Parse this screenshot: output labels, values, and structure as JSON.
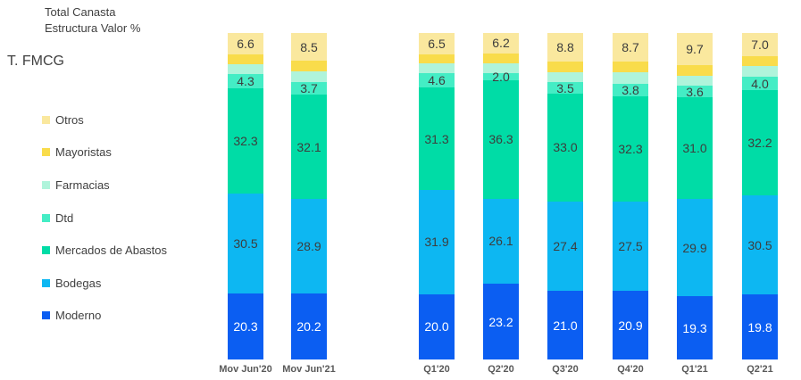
{
  "header": {
    "title_line1": "Total Canasta",
    "title_line2": "Estructura Valor %",
    "segment_label": "T. FMCG"
  },
  "legend": {
    "position": "left",
    "items": [
      {
        "label": "Otros",
        "color": "#FAE89E"
      },
      {
        "label": "Mayoristas",
        "color": "#F9DC4B"
      },
      {
        "label": "Farmacias",
        "color": "#AFF4DB"
      },
      {
        "label": "Dtd",
        "color": "#44EDC5"
      },
      {
        "label": "Mercados de Abastos",
        "color": "#00DCA6"
      },
      {
        "label": "Bodegas",
        "color": "#0DB7F2"
      },
      {
        "label": "Moderno",
        "color": "#0B5EF2"
      }
    ]
  },
  "chart_data": {
    "type": "bar",
    "stacked": true,
    "unit": "%",
    "title": "Total Canasta",
    "subtitle": "Estructura Valor %",
    "grid": false,
    "ylim": [
      0,
      100
    ],
    "legend_position": "left",
    "categories": [
      "Mov Jun'20",
      "Mov Jun'21",
      "Q1'20",
      "Q2'20",
      "Q3'20",
      "Q4'20",
      "Q1'21",
      "Q2'21"
    ],
    "group_split_after_index": 1,
    "series_bottom_to_top": [
      {
        "name": "Moderno",
        "color": "#0B5EF2",
        "labels_shown": true,
        "label_color": "#ffffff",
        "values": [
          20.3,
          20.2,
          20.0,
          23.2,
          21.0,
          20.9,
          19.3,
          19.8
        ]
      },
      {
        "name": "Bodegas",
        "color": "#0DB7F2",
        "labels_shown": true,
        "values": [
          30.5,
          28.9,
          31.9,
          26.1,
          27.4,
          27.5,
          29.9,
          30.5
        ]
      },
      {
        "name": "Mercados de Abastos",
        "color": "#00DCA6",
        "labels_shown": true,
        "values": [
          32.3,
          32.1,
          31.3,
          36.3,
          33.0,
          32.3,
          31.0,
          32.2
        ]
      },
      {
        "name": "Dtd",
        "color": "#44EDC5",
        "labels_shown": true,
        "values": [
          4.3,
          3.7,
          4.6,
          2.0,
          3.5,
          3.8,
          3.6,
          4.0
        ]
      },
      {
        "name": "Farmacias",
        "color": "#AFF4DB",
        "labels_shown": false,
        "values_estimated": true,
        "values": [
          3.1,
          3.3,
          2.9,
          3.1,
          3.2,
          3.4,
          3.0,
          3.3
        ]
      },
      {
        "name": "Mayoristas",
        "color": "#F9DC4B",
        "labels_shown": false,
        "values_estimated": true,
        "values": [
          2.9,
          3.3,
          2.8,
          3.1,
          3.1,
          3.4,
          3.5,
          3.2
        ]
      },
      {
        "name": "Otros",
        "color": "#FAE89E",
        "labels_shown": true,
        "values": [
          6.6,
          8.5,
          6.5,
          6.2,
          8.8,
          8.7,
          9.7,
          7.0
        ]
      }
    ]
  }
}
